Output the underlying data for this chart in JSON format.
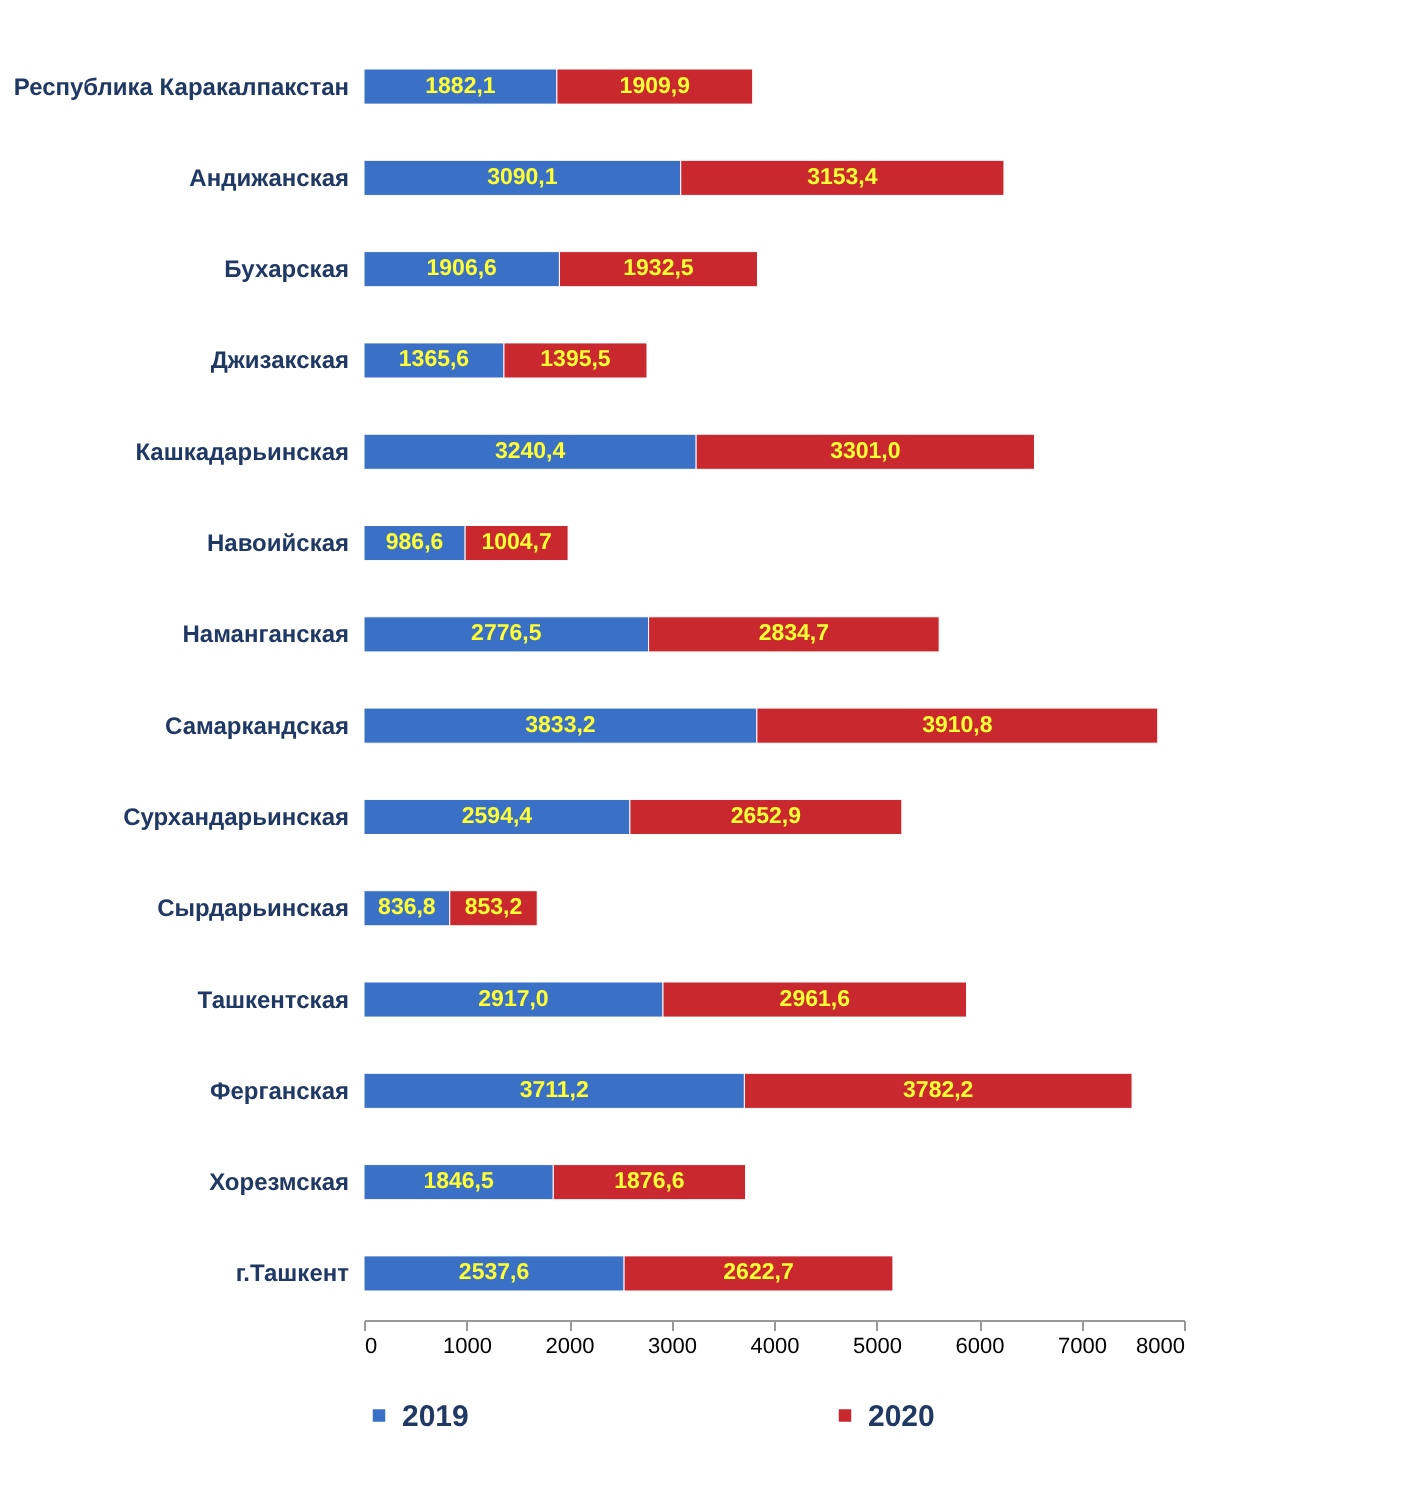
{
  "chart_data": {
    "type": "bar",
    "orientation": "horizontal",
    "stacked": true,
    "legend": "bottom",
    "grid": false,
    "categories": [
      "Республика Каракалпакстан",
      "Андижанская",
      "Бухарская",
      "Джизакская",
      "Кашкадарьинская",
      "Навоийская",
      "Наманганская",
      "Самаркандская",
      "Сурхандарьинская",
      "Сырдарьинская",
      "Ташкентская",
      "Ферганская",
      "Хорезмская",
      "г.Ташкент"
    ],
    "xlim": [
      0,
      8000
    ],
    "xticks": [
      0,
      1000,
      2000,
      3000,
      4000,
      5000,
      6000,
      7000,
      8000
    ],
    "series": [
      {
        "name": "2019",
        "color": "#3a70c6",
        "values": [
          1882.1,
          3090.1,
          1906.6,
          1365.6,
          3240.4,
          986.6,
          2776.5,
          3833.2,
          2594.4,
          836.8,
          2917.0,
          3711.2,
          1846.5,
          2537.6
        ],
        "value_labels": [
          "1882,1",
          "3090,1",
          "1906,6",
          "1365,6",
          "3240,4",
          "986,6",
          "2776,5",
          "3833,2",
          "2594,4",
          "836,8",
          "2917,0",
          "3711,2",
          "1846,5",
          "2537,6"
        ]
      },
      {
        "name": "2020",
        "color": "#c8282e",
        "values": [
          1909.9,
          3153.4,
          1932.5,
          1395.5,
          3301.0,
          1004.7,
          2834.7,
          3910.8,
          2652.9,
          853.2,
          2961.6,
          3782.2,
          1876.6,
          2622.7
        ],
        "value_labels": [
          "1909,9",
          "3153,4",
          "1932,5",
          "1395,5",
          "3301,0",
          "1004,7",
          "2834,7",
          "3910,8",
          "2652,9",
          "853,2",
          "2961,6",
          "3782,2",
          "1876,6",
          "2622,7"
        ]
      }
    ]
  }
}
